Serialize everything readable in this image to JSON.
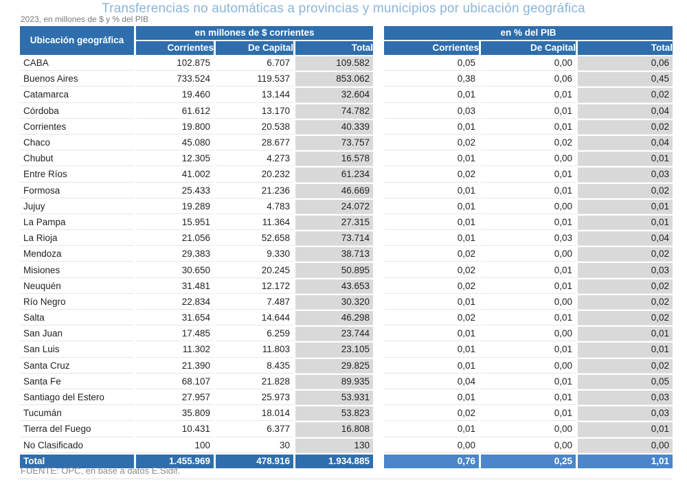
{
  "title": "Transferencias no automáticas a provincias y municipios por ubicación geográfica",
  "subtitle": "2023, en millones de $ y % del PIB",
  "headers": {
    "location": "Ubicación geográfica",
    "group_millions": "en millones de $ corrientes",
    "group_pib": "en % del PIB",
    "corrientes": "Corrientes",
    "capital": "De Capital",
    "total": "Total"
  },
  "rows": [
    {
      "name": "CABA",
      "corr": "102.875",
      "cap": "6.707",
      "tot": "109.582",
      "pcorr": "0,05",
      "pcap": "0,00",
      "ptot": "0,06"
    },
    {
      "name": "Buenos Aires",
      "corr": "733.524",
      "cap": "119.537",
      "tot": "853.062",
      "pcorr": "0,38",
      "pcap": "0,06",
      "ptot": "0,45"
    },
    {
      "name": "Catamarca",
      "corr": "19.460",
      "cap": "13.144",
      "tot": "32.604",
      "pcorr": "0,01",
      "pcap": "0,01",
      "ptot": "0,02"
    },
    {
      "name": "Córdoba",
      "corr": "61.612",
      "cap": "13.170",
      "tot": "74.782",
      "pcorr": "0,03",
      "pcap": "0,01",
      "ptot": "0,04"
    },
    {
      "name": "Corrientes",
      "corr": "19.800",
      "cap": "20.538",
      "tot": "40.339",
      "pcorr": "0,01",
      "pcap": "0,01",
      "ptot": "0,02"
    },
    {
      "name": "Chaco",
      "corr": "45.080",
      "cap": "28.677",
      "tot": "73.757",
      "pcorr": "0,02",
      "pcap": "0,02",
      "ptot": "0,04"
    },
    {
      "name": "Chubut",
      "corr": "12.305",
      "cap": "4.273",
      "tot": "16.578",
      "pcorr": "0,01",
      "pcap": "0,00",
      "ptot": "0,01"
    },
    {
      "name": "Entre Ríos",
      "corr": "41.002",
      "cap": "20.232",
      "tot": "61.234",
      "pcorr": "0,02",
      "pcap": "0,01",
      "ptot": "0,03"
    },
    {
      "name": "Formosa",
      "corr": "25.433",
      "cap": "21.236",
      "tot": "46.669",
      "pcorr": "0,01",
      "pcap": "0,01",
      "ptot": "0,02"
    },
    {
      "name": "Jujuy",
      "corr": "19.289",
      "cap": "4.783",
      "tot": "24.072",
      "pcorr": "0,01",
      "pcap": "0,00",
      "ptot": "0,01"
    },
    {
      "name": "La Pampa",
      "corr": "15.951",
      "cap": "11.364",
      "tot": "27.315",
      "pcorr": "0,01",
      "pcap": "0,01",
      "ptot": "0,01"
    },
    {
      "name": "La Rioja",
      "corr": "21.056",
      "cap": "52.658",
      "tot": "73.714",
      "pcorr": "0,01",
      "pcap": "0,03",
      "ptot": "0,04"
    },
    {
      "name": "Mendoza",
      "corr": "29.383",
      "cap": "9.330",
      "tot": "38.713",
      "pcorr": "0,02",
      "pcap": "0,00",
      "ptot": "0,02"
    },
    {
      "name": "Misiones",
      "corr": "30.650",
      "cap": "20.245",
      "tot": "50.895",
      "pcorr": "0,02",
      "pcap": "0,01",
      "ptot": "0,03"
    },
    {
      "name": "Neuquén",
      "corr": "31.481",
      "cap": "12.172",
      "tot": "43.653",
      "pcorr": "0,02",
      "pcap": "0,01",
      "ptot": "0,02"
    },
    {
      "name": "Río Negro",
      "corr": "22.834",
      "cap": "7.487",
      "tot": "30.320",
      "pcorr": "0,01",
      "pcap": "0,00",
      "ptot": "0,02"
    },
    {
      "name": "Salta",
      "corr": "31.654",
      "cap": "14.644",
      "tot": "46.298",
      "pcorr": "0,02",
      "pcap": "0,01",
      "ptot": "0,02"
    },
    {
      "name": "San Juan",
      "corr": "17.485",
      "cap": "6.259",
      "tot": "23.744",
      "pcorr": "0,01",
      "pcap": "0,00",
      "ptot": "0,01"
    },
    {
      "name": "San Luis",
      "corr": "11.302",
      "cap": "11.803",
      "tot": "23.105",
      "pcorr": "0,01",
      "pcap": "0,01",
      "ptot": "0,01"
    },
    {
      "name": "Santa Cruz",
      "corr": "21.390",
      "cap": "8.435",
      "tot": "29.825",
      "pcorr": "0,01",
      "pcap": "0,00",
      "ptot": "0,02"
    },
    {
      "name": "Santa Fe",
      "corr": "68.107",
      "cap": "21.828",
      "tot": "89.935",
      "pcorr": "0,04",
      "pcap": "0,01",
      "ptot": "0,05"
    },
    {
      "name": "Santiago del Estero",
      "corr": "27.957",
      "cap": "25.973",
      "tot": "53.931",
      "pcorr": "0,01",
      "pcap": "0,01",
      "ptot": "0,03"
    },
    {
      "name": "Tucumán",
      "corr": "35.809",
      "cap": "18.014",
      "tot": "53.823",
      "pcorr": "0,02",
      "pcap": "0,01",
      "ptot": "0,03"
    },
    {
      "name": "Tierra del Fuego",
      "corr": "10.431",
      "cap": "6.377",
      "tot": "16.808",
      "pcorr": "0,01",
      "pcap": "0,00",
      "ptot": "0,01"
    },
    {
      "name": "No Clasificado",
      "corr": "100",
      "cap": "30",
      "tot": "130",
      "pcorr": "0,00",
      "pcap": "0,00",
      "ptot": "0,00"
    }
  ],
  "total_row": {
    "name": "Total",
    "corr": "1.455.969",
    "cap": "478.916",
    "tot": "1.934.885",
    "pcorr": "0,76",
    "pcap": "0,25",
    "ptot": "1,01"
  },
  "footer": "FUENTE: OPC, en base a datos E.Sidif.",
  "colors": {
    "header": "#2e6ead",
    "total_pct": "#4a86c9",
    "title": "#8ab4dc",
    "shade": "#d9d9d9"
  }
}
